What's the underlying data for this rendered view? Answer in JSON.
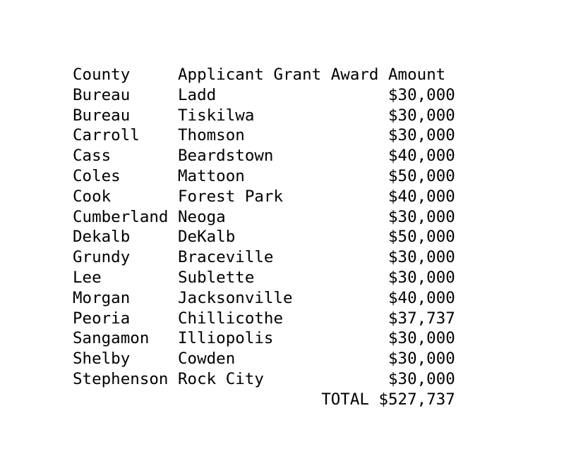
{
  "page": {
    "background_color": "#ffffff",
    "text_color": "#000000"
  },
  "table": {
    "header": {
      "county_label": "County",
      "applicant_label": "Applicant",
      "amount_label": "Grant Award Amount"
    },
    "rows": [
      {
        "county": "Bureau",
        "applicant": "Ladd",
        "amount": "$30,000"
      },
      {
        "county": "Bureau",
        "applicant": "Tiskilwa",
        "amount": "$30,000"
      },
      {
        "county": "Carroll",
        "applicant": "Thomson",
        "amount": "$30,000"
      },
      {
        "county": "Cass",
        "applicant": "Beardstown",
        "amount": "$40,000"
      },
      {
        "county": "Coles",
        "applicant": "Mattoon",
        "amount": "$50,000"
      },
      {
        "county": "Cook",
        "applicant": "Forest Park",
        "amount": "$40,000"
      },
      {
        "county": "Cumberland",
        "applicant": "Neoga",
        "amount": "$30,000"
      },
      {
        "county": "Dekalb",
        "applicant": "DeKalb",
        "amount": "$50,000"
      },
      {
        "county": "Grundy",
        "applicant": "Braceville",
        "amount": "$30,000"
      },
      {
        "county": "Lee",
        "applicant": "Sublette",
        "amount": "$30,000"
      },
      {
        "county": "Morgan",
        "applicant": "Jacksonville",
        "amount": "$40,000"
      },
      {
        "county": "Peoria",
        "applicant": "Chillicothe",
        "amount": "$37,737"
      },
      {
        "county": "Sangamon",
        "applicant": "Illiopolis",
        "amount": "$30,000"
      },
      {
        "county": "Shelby",
        "applicant": "Cowden",
        "amount": "$30,000"
      },
      {
        "county": "Stephenson",
        "applicant": "Rock City",
        "amount": "$30,000"
      }
    ],
    "total": {
      "label": "TOTAL",
      "amount": "$527,737"
    }
  }
}
